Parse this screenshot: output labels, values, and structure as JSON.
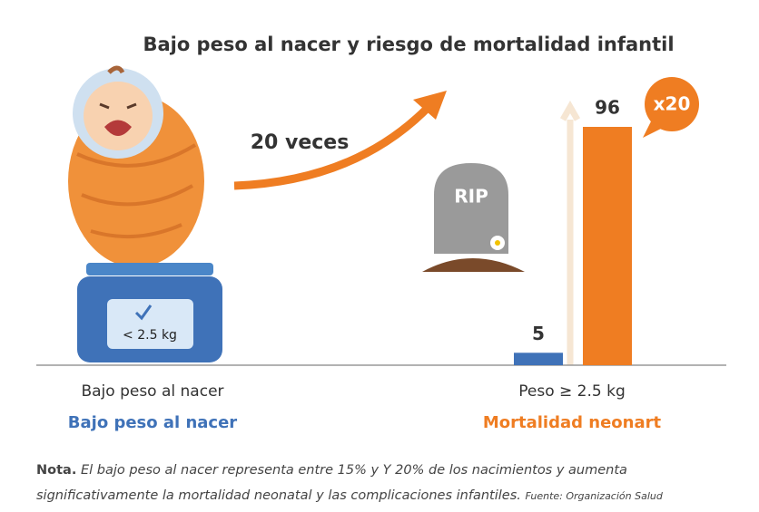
{
  "chart_data": {
    "type": "bar",
    "title": "Bajo peso al nacer y riesgo de mortalidad infantil",
    "annotation": "20 veces",
    "badge": "x20",
    "values": [
      5,
      96
    ],
    "colors": [
      "#3f72b8",
      "#ef7d22"
    ],
    "captions": [
      "Bajo peso al nacer",
      "Peso ≥ 2.5 kg"
    ],
    "labels": [
      "Bajo peso al nacer",
      "Mortalidad neonart"
    ]
  },
  "illustration": {
    "scale_label": "< 2.5 kg",
    "tombstone": "RIP"
  },
  "note": {
    "label": "Nota.",
    "text": "El bajo peso al nacer representa entre 15% y Y 20% de los nacimientos y aumenta significativamente la mortalidad neonatal y las complicaciones infantiles.",
    "source": "Fuente: Organización Salud"
  }
}
